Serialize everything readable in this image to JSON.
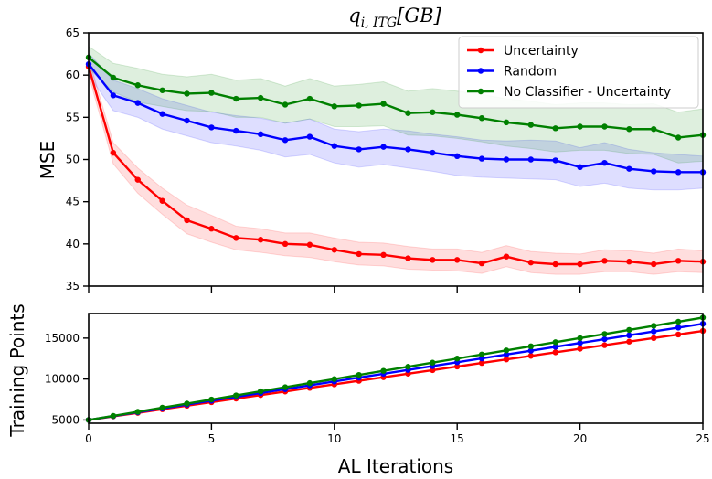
{
  "chart_data": [
    {
      "type": "line",
      "title": "q_{i, ITG}[GB]",
      "title_main": "q",
      "title_sub": "i, ITG",
      "title_rest": "[GB]",
      "xlabel": "",
      "ylabel": "MSE",
      "xlim": [
        0,
        25
      ],
      "ylim": [
        35,
        65
      ],
      "yticks": [
        35,
        40,
        45,
        50,
        55,
        60,
        65
      ],
      "legend_placement": "top-right",
      "x": [
        0,
        1,
        2,
        3,
        4,
        5,
        6,
        7,
        8,
        9,
        10,
        11,
        12,
        13,
        14,
        15,
        16,
        17,
        18,
        19,
        20,
        21,
        22,
        23,
        24,
        25
      ],
      "series": [
        {
          "name": "Uncertainty",
          "color": "#ff0000",
          "values": [
            61.0,
            50.8,
            47.6,
            45.1,
            42.8,
            41.8,
            40.7,
            40.5,
            40.0,
            39.9,
            39.3,
            38.8,
            38.7,
            38.3,
            38.1,
            38.1,
            37.7,
            38.5,
            37.8,
            37.6,
            37.6,
            38.0,
            37.9,
            37.6,
            38.0,
            37.9
          ],
          "band_low": [
            60.0,
            49.5,
            46.0,
            43.5,
            41.2,
            40.2,
            39.3,
            39.0,
            38.6,
            38.4,
            37.9,
            37.5,
            37.4,
            37.0,
            36.9,
            36.8,
            36.5,
            37.3,
            36.6,
            36.4,
            36.4,
            36.7,
            36.7,
            36.4,
            36.7,
            36.6
          ],
          "band_high": [
            62.0,
            52.0,
            49.0,
            46.6,
            44.6,
            43.4,
            42.1,
            41.8,
            41.3,
            41.3,
            40.7,
            40.2,
            40.1,
            39.7,
            39.4,
            39.4,
            39.0,
            39.8,
            39.1,
            38.9,
            38.8,
            39.3,
            39.2,
            38.9,
            39.4,
            39.2
          ]
        },
        {
          "name": "Random",
          "color": "#0000ff",
          "values": [
            61.3,
            57.6,
            56.7,
            55.4,
            54.6,
            53.8,
            53.4,
            53.0,
            52.3,
            52.7,
            51.6,
            51.2,
            51.5,
            51.2,
            50.8,
            50.4,
            50.1,
            50.0,
            50.0,
            49.9,
            49.1,
            49.6,
            48.9,
            48.6,
            48.5,
            48.5
          ],
          "band_low": [
            60.0,
            55.8,
            55.0,
            53.6,
            52.8,
            52.0,
            51.6,
            51.1,
            50.3,
            50.6,
            49.6,
            49.1,
            49.4,
            49.0,
            48.6,
            48.1,
            47.9,
            47.8,
            47.7,
            47.6,
            46.8,
            47.2,
            46.6,
            46.4,
            46.4,
            46.6
          ],
          "band_high": [
            62.6,
            59.4,
            58.4,
            57.2,
            56.4,
            55.6,
            55.2,
            54.9,
            54.3,
            54.8,
            53.6,
            53.3,
            53.6,
            53.4,
            53.0,
            52.7,
            52.3,
            52.2,
            52.3,
            52.2,
            51.4,
            52.0,
            51.2,
            50.8,
            50.6,
            50.4
          ]
        },
        {
          "name": "No Classifier - Uncertainty",
          "color": "#008000",
          "values": [
            62.1,
            59.7,
            58.8,
            58.2,
            57.8,
            57.9,
            57.2,
            57.3,
            56.5,
            57.2,
            56.3,
            56.4,
            56.6,
            55.5,
            55.6,
            55.3,
            54.9,
            54.4,
            54.1,
            53.7,
            53.9,
            53.9,
            53.6,
            53.6,
            52.6,
            52.9
          ],
          "band_low": [
            60.8,
            58.0,
            56.8,
            56.3,
            55.8,
            55.7,
            55.0,
            55.0,
            54.3,
            54.8,
            53.9,
            53.9,
            54.0,
            52.9,
            52.8,
            52.5,
            52.1,
            51.6,
            51.3,
            50.9,
            51.1,
            51.1,
            50.7,
            50.6,
            49.6,
            49.8
          ],
          "band_high": [
            63.4,
            61.4,
            60.8,
            60.1,
            59.8,
            60.1,
            59.4,
            59.6,
            58.7,
            59.6,
            58.7,
            58.9,
            59.2,
            58.1,
            58.4,
            58.1,
            57.7,
            57.2,
            56.9,
            56.5,
            56.7,
            56.7,
            56.5,
            56.6,
            55.6,
            56.0
          ]
        }
      ]
    },
    {
      "type": "line",
      "title": "",
      "xlabel": "AL Iterations",
      "ylabel": "Training Points",
      "xlim": [
        0,
        25
      ],
      "ylim": [
        4600,
        18000
      ],
      "xticks": [
        0,
        5,
        10,
        15,
        20,
        25
      ],
      "yticks": [
        5000,
        10000,
        15000
      ],
      "x": [
        0,
        1,
        2,
        3,
        4,
        5,
        6,
        7,
        8,
        9,
        10,
        11,
        12,
        13,
        14,
        15,
        16,
        17,
        18,
        19,
        20,
        21,
        22,
        23,
        24,
        25
      ],
      "series": [
        {
          "name": "Uncertainty",
          "color": "#ff0000",
          "values": [
            5000,
            5435,
            5870,
            6305,
            6740,
            7175,
            7610,
            8045,
            8480,
            8915,
            9350,
            9785,
            10220,
            10655,
            11090,
            11525,
            11960,
            12395,
            12830,
            13265,
            13700,
            14135,
            14570,
            15005,
            15440,
            15875
          ]
        },
        {
          "name": "Random",
          "color": "#0000ff",
          "values": [
            5000,
            5470,
            5940,
            6410,
            6880,
            7350,
            7820,
            8290,
            8760,
            9230,
            9700,
            10170,
            10640,
            11110,
            11580,
            12050,
            12520,
            12990,
            13460,
            13930,
            14400,
            14870,
            15340,
            15810,
            16280,
            16750
          ]
        },
        {
          "name": "No Classifier - Uncertainty",
          "color": "#008000",
          "values": [
            5000,
            5500,
            6000,
            6500,
            7000,
            7500,
            8000,
            8500,
            9000,
            9500,
            10000,
            10500,
            11000,
            11500,
            12000,
            12500,
            13000,
            13500,
            14000,
            14500,
            15000,
            15500,
            16000,
            16500,
            17000,
            17500
          ]
        }
      ]
    }
  ]
}
